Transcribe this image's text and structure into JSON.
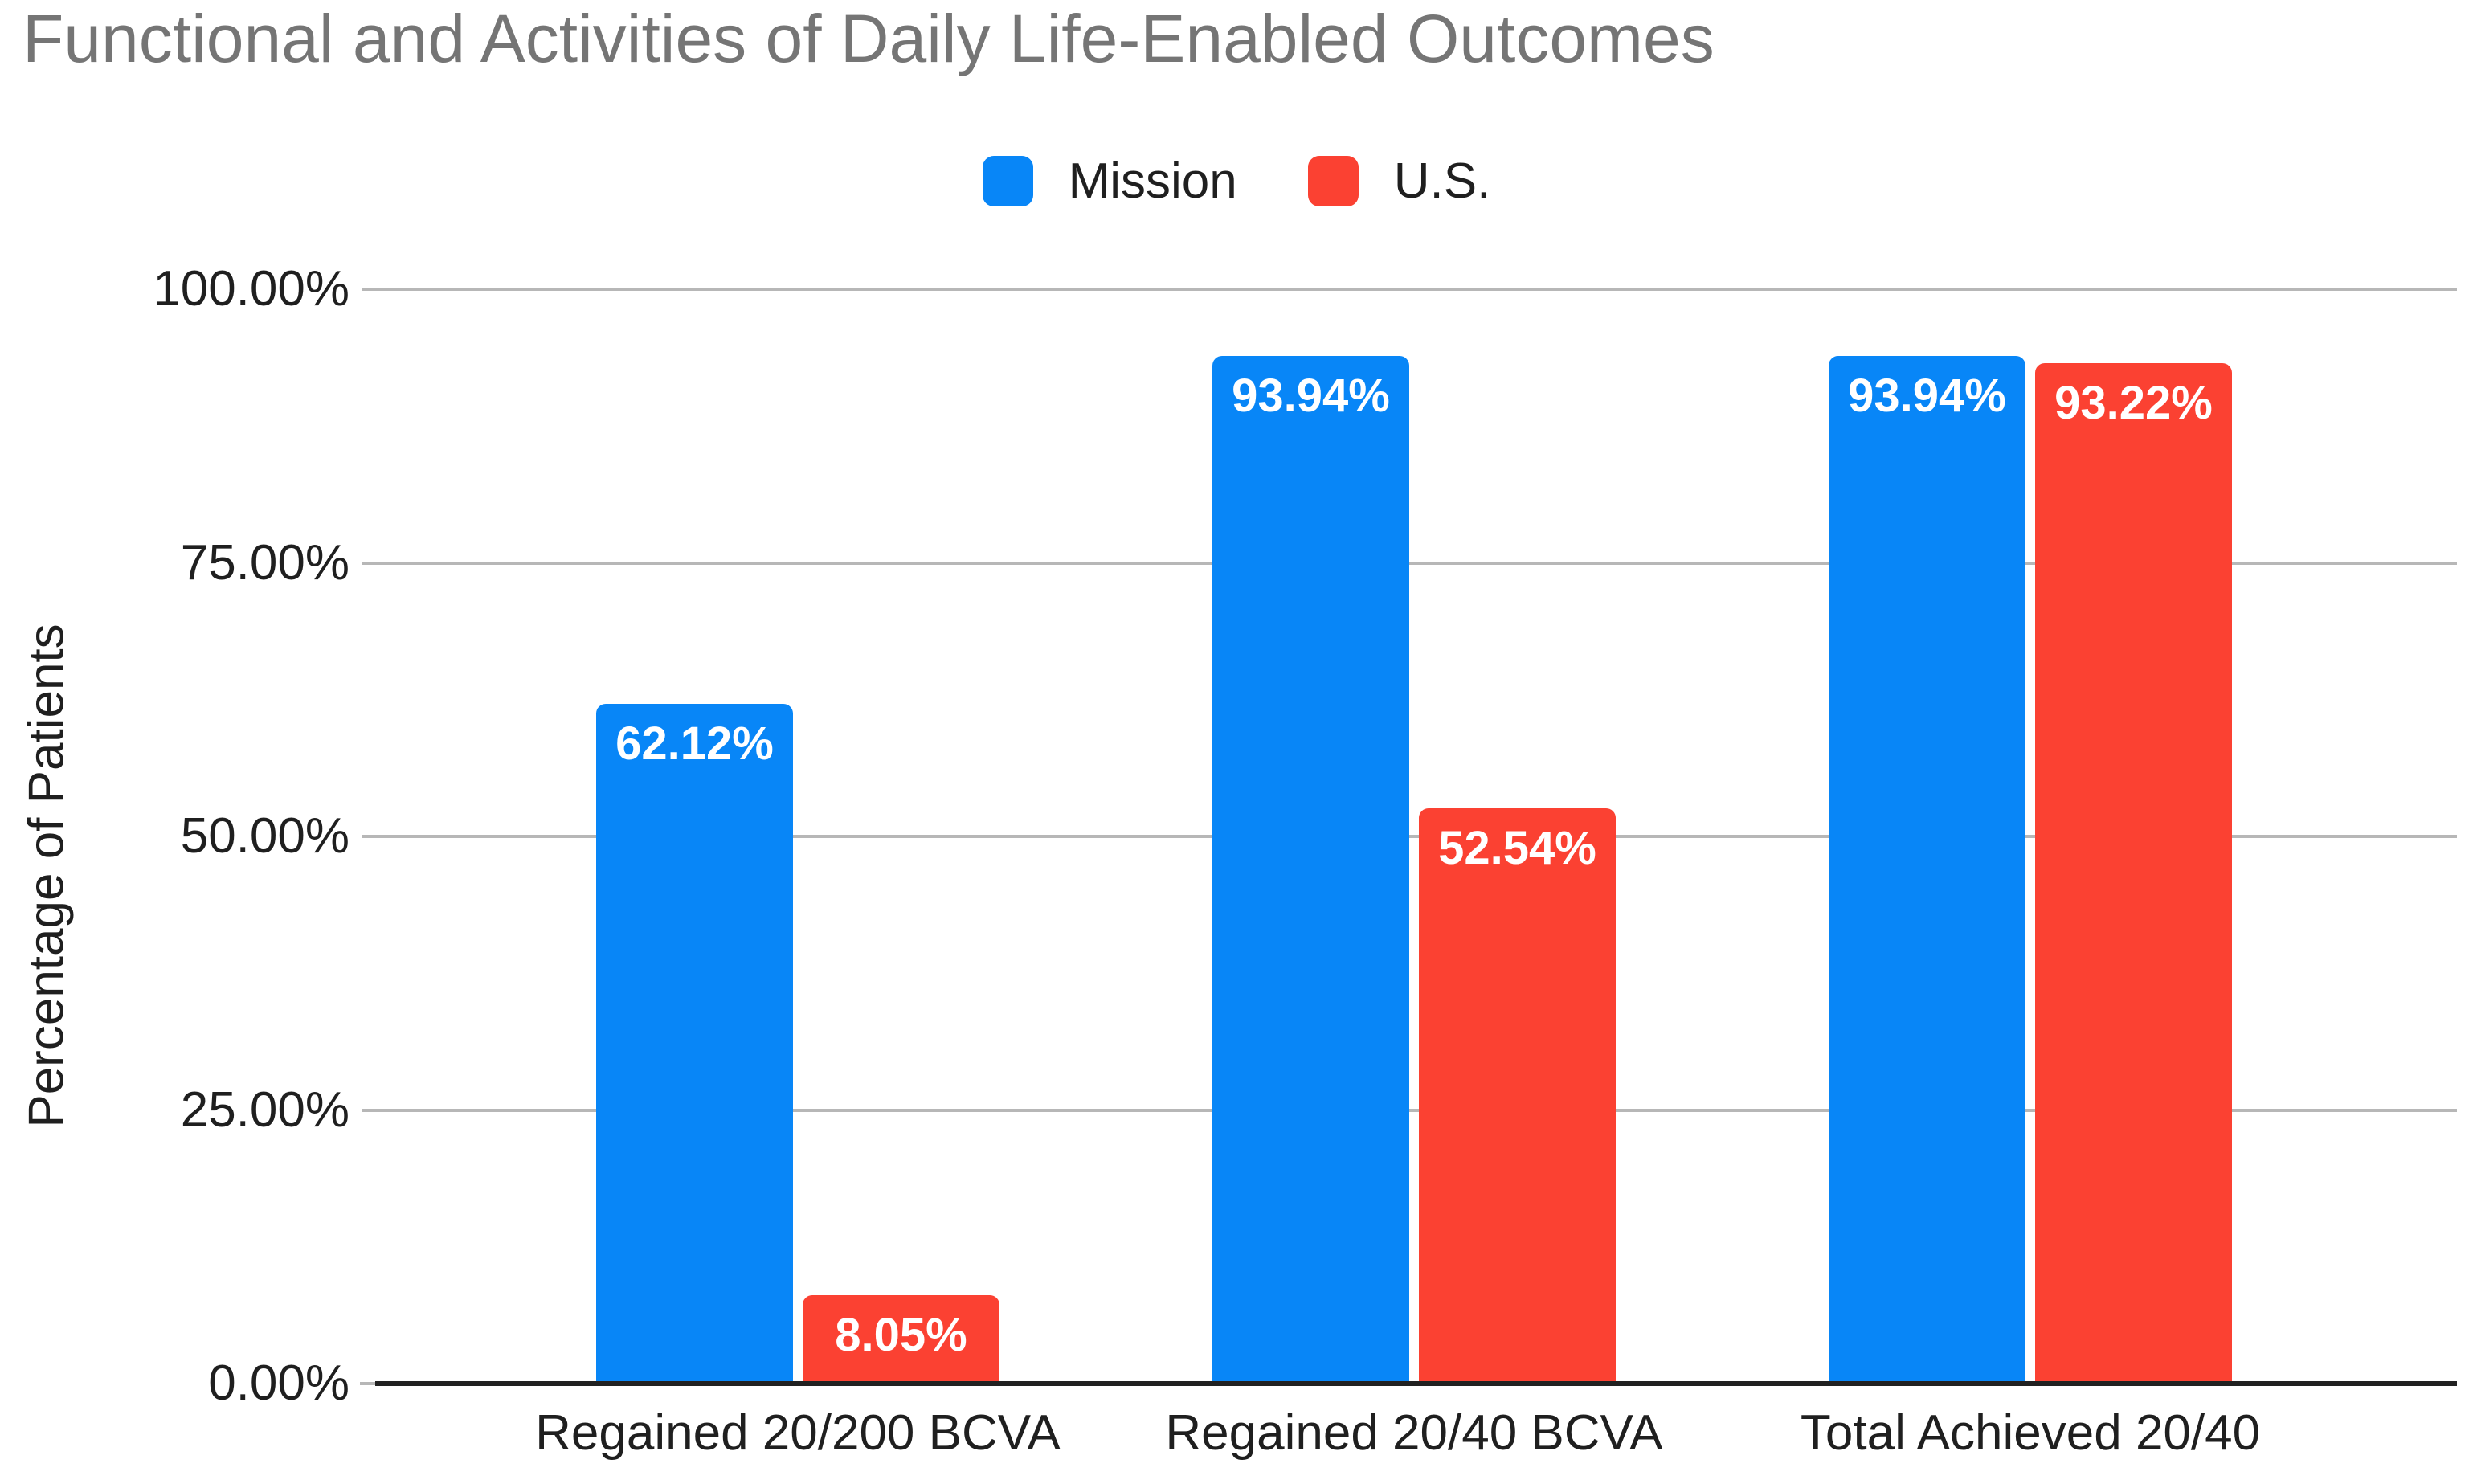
{
  "title": "Functional and Activities of Daily Life-Enabled Outcomes",
  "colors": {
    "mission_blue": "#0886f7",
    "us_red": "#fb4132",
    "title_gray": "#757575",
    "axis_text": "#1f1f1f",
    "gridline_gray": "#b7b7b7",
    "baseline_dark": "#212121",
    "value_label_white": "#ffffff"
  },
  "chart_data": {
    "type": "bar",
    "title": "Functional and Activities of Daily Life-Enabled Outcomes",
    "categories": [
      "Regained 20/200 BCVA",
      "Regained 20/40 BCVA",
      "Total Achieved 20/40"
    ],
    "series": [
      {
        "name": "Mission",
        "color": "#0886f7",
        "values": [
          62.12,
          93.94,
          93.94
        ],
        "labels": [
          "62.12%",
          "93.94%",
          "93.94%"
        ]
      },
      {
        "name": "U.S.",
        "color": "#fb4132",
        "values": [
          8.05,
          52.54,
          93.22
        ],
        "labels": [
          "8.05%",
          "52.54%",
          "93.22%"
        ]
      }
    ],
    "xlabel": "",
    "ylabel": "Percentage of Patients",
    "ylim": [
      0,
      100
    ],
    "y_ticks": [
      {
        "label": "0.00%",
        "value": 0
      },
      {
        "label": "25.00%",
        "value": 25
      },
      {
        "label": "50.00%",
        "value": 50
      },
      {
        "label": "75.00%",
        "value": 75
      },
      {
        "label": "100.00%",
        "value": 100
      }
    ],
    "grid": true,
    "legend_position": "top",
    "value_labels_inside_bars": true
  }
}
